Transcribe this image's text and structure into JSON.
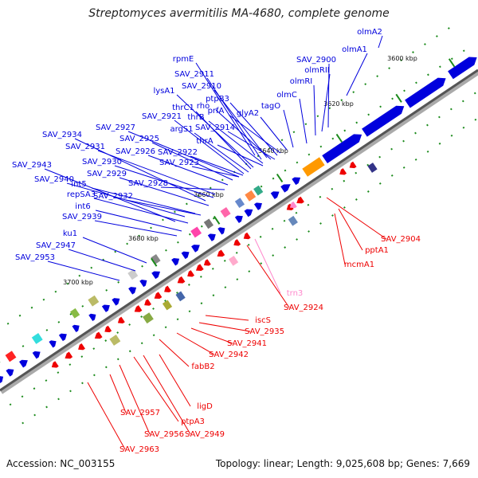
{
  "title": "Streptomyces avermitilis MA-4680, complete genome",
  "footer": {
    "accession": "Accession: NC_003155",
    "stats": "Topology: linear; Length: 9,025,608 bp; Genes: 7,669"
  },
  "colors": {
    "forward": "#0000dd",
    "reverse": "#ee0000",
    "rna": "#ff88cc",
    "backbone": "#888888",
    "tick": "#1a8a1a"
  },
  "ticks": [
    "3600 kbp",
    "3620 kbp",
    "3640 kbp",
    "3660 kbp",
    "3680 kbp",
    "3700 kbp"
  ],
  "forward_labels": [
    "olmA2",
    "olmA1",
    "SAV_2900",
    "olmRII",
    "olmRI",
    "olmC",
    "rpmE",
    "tagO",
    "SAV_2911",
    "SAV_2910",
    "ptpB3",
    "lysA1",
    "prfA",
    "glyA2",
    "thrC1",
    "rho",
    "thrB",
    "SAV_2921",
    "SAV_2914",
    "SAV_2927",
    "argS1",
    "thrA",
    "SAV_2934",
    "SAV_2925",
    "SAV_2931",
    "SAV_2926",
    "SAV_2922",
    "SAV_2930",
    "SAV_2923",
    "SAV_2943",
    "SAV_2929",
    "SAV_2940",
    "int5",
    "SAV_2928",
    "repSA3",
    "SAV_2932",
    "int6",
    "SAV_2939",
    "ku1",
    "SAV_2947",
    "SAV_2953"
  ],
  "reverse_labels": [
    "SAV_2904",
    "pptA1",
    "mcmA1",
    "trn3",
    "SAV_2924",
    "iscS",
    "SAV_2935",
    "SAV_2941",
    "SAV_2942",
    "fabB2",
    "ligD",
    "SAV_2957",
    "ptpA3",
    "SAV_2956",
    "SAV_2949",
    "SAV_2963"
  ]
}
